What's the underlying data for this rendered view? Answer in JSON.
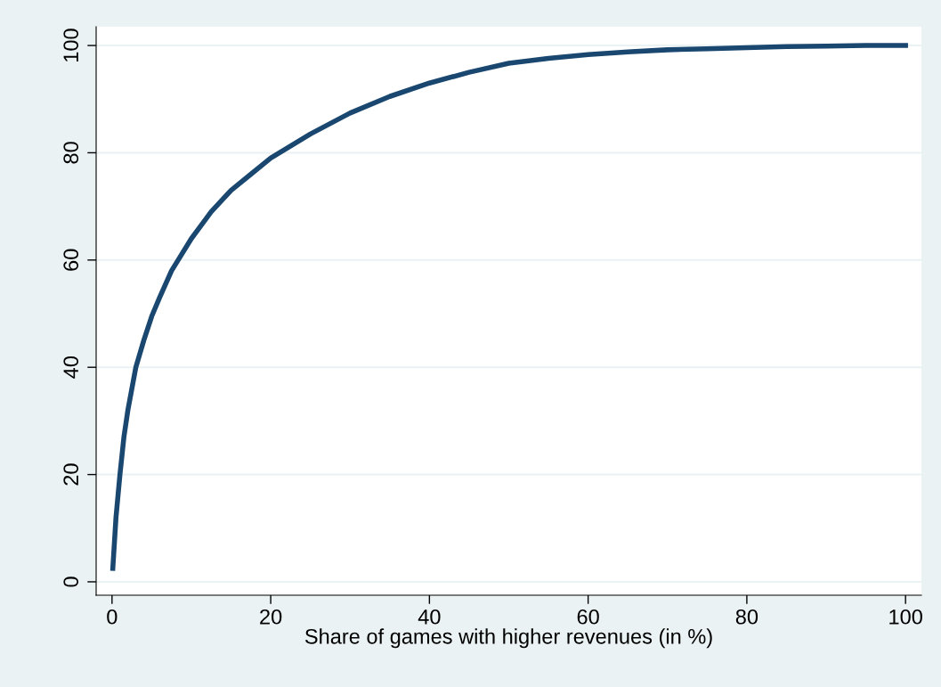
{
  "chart_data": {
    "type": "line",
    "xlabel": "Share of games with higher revenues (in %)",
    "series": [
      {
        "color": "#1a476f",
        "x": [
          0.1,
          0.5,
          1,
          1.5,
          2,
          3,
          4,
          5,
          6,
          7.5,
          10,
          12.5,
          15,
          17.5,
          20,
          25,
          30,
          35,
          40,
          45,
          50,
          55,
          60,
          65,
          70,
          75,
          80,
          85,
          90,
          95,
          100
        ],
        "values": [
          2.5,
          12,
          20,
          27,
          32,
          40,
          45,
          49.5,
          53,
          58,
          64,
          69,
          73,
          76,
          79,
          83.5,
          87.4,
          90.5,
          93,
          95,
          96.7,
          97.6,
          98.3,
          98.8,
          99.2,
          99.4,
          99.6,
          99.8,
          99.9,
          100,
          100
        ]
      }
    ],
    "xlim": [
      -2,
      102
    ],
    "ylim": [
      -2.5,
      103.5
    ],
    "xticks": [
      0,
      20,
      40,
      60,
      80,
      100
    ],
    "yticks": [
      0,
      20,
      40,
      60,
      80,
      100
    ],
    "grid": "y",
    "legend": false,
    "marker": "none",
    "line_style": "solid"
  }
}
